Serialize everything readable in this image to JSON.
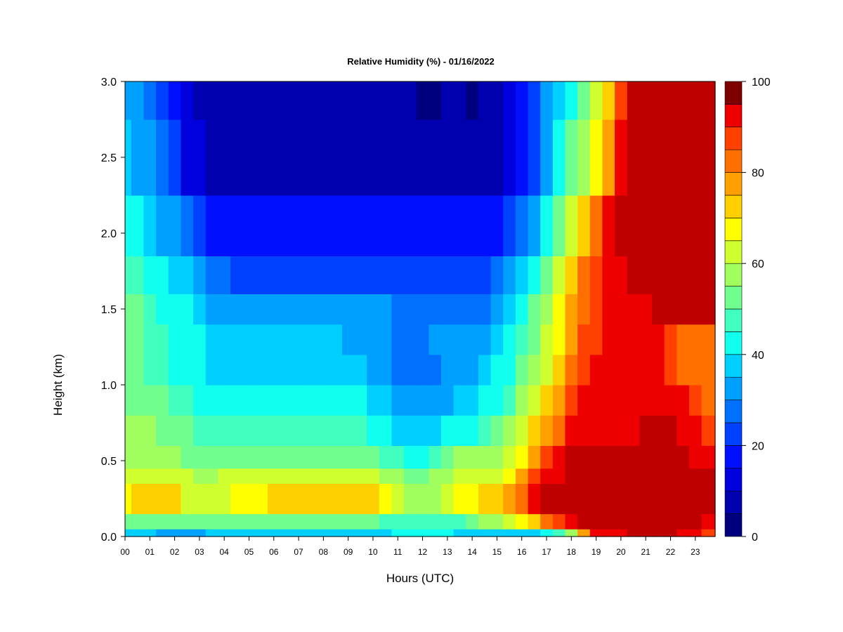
{
  "chart_data": {
    "type": "heatmap",
    "title": "Relative Humidity (%) - 01/16/2022",
    "xlabel": "Hours (UTC)",
    "ylabel": "Height (km)",
    "x_ticks": [
      "00",
      "01",
      "02",
      "03",
      "04",
      "05",
      "06",
      "07",
      "08",
      "09",
      "10",
      "11",
      "12",
      "13",
      "14",
      "15",
      "16",
      "17",
      "18",
      "19",
      "20",
      "21",
      "22",
      "23"
    ],
    "y_ticks": [
      "0.0",
      "0.5",
      "1.0",
      "1.5",
      "2.0",
      "2.5",
      "3.0"
    ],
    "xlim": [
      0,
      23.8
    ],
    "ylim": [
      0,
      3.0
    ],
    "colorbar": {
      "ticks": [
        "0",
        "20",
        "40",
        "60",
        "80",
        "100"
      ],
      "range": [
        0,
        100
      ],
      "levels": 20,
      "colors": [
        "#00007f",
        "#0000af",
        "#0000df",
        "#0010ff",
        "#0040ff",
        "#0070ff",
        "#00a0ff",
        "#00d0ff",
        "#10ffee",
        "#40ffbf",
        "#70ff8f",
        "#a0ff5f",
        "#d0ff2f",
        "#ffff00",
        "#ffd000",
        "#ffa000",
        "#ff7000",
        "#ff4000",
        "#ef0000",
        "#bf0000",
        "#7f0000"
      ]
    },
    "hours": [
      0,
      0.5,
      1,
      1.5,
      2,
      2.5,
      3,
      3.5,
      4,
      4.5,
      5,
      5.5,
      6,
      6.5,
      7,
      7.5,
      8,
      8.5,
      9,
      9.5,
      10,
      10.5,
      11,
      11.5,
      12,
      12.5,
      13,
      13.5,
      14,
      14.5,
      15,
      15.5,
      16,
      16.5,
      17,
      17.5,
      18,
      18.5,
      19,
      19.5,
      20,
      20.5,
      21,
      21.5,
      22,
      22.5,
      23,
      23.5
    ],
    "heights_km": [
      0.0,
      0.1,
      0.2,
      0.3,
      0.4,
      0.5,
      0.7,
      0.9,
      1.1,
      1.3,
      1.5,
      1.7,
      2.0,
      2.5,
      3.0
    ],
    "rh": [
      [
        38,
        38,
        36,
        34,
        34,
        34,
        34,
        35,
        35,
        36,
        36,
        36,
        37,
        37,
        37,
        37,
        37,
        37,
        37,
        37,
        36,
        38,
        40,
        40,
        40,
        40,
        40,
        38,
        38,
        38,
        38,
        38,
        38,
        38,
        40,
        45,
        55,
        78,
        90,
        92,
        94,
        95,
        95,
        96,
        96,
        94,
        90,
        85
      ],
      [
        50,
        52,
        52,
        52,
        50,
        50,
        50,
        50,
        52,
        52,
        52,
        52,
        52,
        52,
        52,
        52,
        52,
        52,
        52,
        52,
        50,
        48,
        46,
        45,
        45,
        45,
        45,
        48,
        50,
        55,
        58,
        60,
        65,
        70,
        80,
        88,
        92,
        96,
        97,
        97,
        97,
        97,
        97,
        97,
        97,
        97,
        95,
        90
      ],
      [
        68,
        70,
        72,
        72,
        70,
        64,
        62,
        62,
        64,
        66,
        68,
        68,
        70,
        70,
        70,
        70,
        70,
        72,
        72,
        72,
        70,
        68,
        60,
        58,
        58,
        58,
        60,
        66,
        68,
        70,
        72,
        75,
        80,
        90,
        95,
        96,
        98,
        99,
        99,
        99,
        99,
        99,
        99,
        99,
        99,
        99,
        99,
        98
      ],
      [
        68,
        70,
        72,
        72,
        70,
        62,
        60,
        60,
        62,
        66,
        68,
        68,
        70,
        70,
        70,
        70,
        70,
        72,
        72,
        72,
        70,
        68,
        60,
        58,
        58,
        58,
        60,
        66,
        68,
        70,
        72,
        75,
        82,
        92,
        96,
        97,
        98,
        99,
        99,
        99,
        99,
        99,
        99,
        99,
        99,
        99,
        99,
        99
      ],
      [
        62,
        64,
        64,
        64,
        62,
        60,
        58,
        58,
        60,
        60,
        62,
        62,
        62,
        62,
        62,
        62,
        62,
        62,
        62,
        62,
        60,
        58,
        55,
        54,
        54,
        55,
        58,
        60,
        60,
        62,
        64,
        66,
        75,
        88,
        92,
        94,
        96,
        99,
        99,
        99,
        99,
        99,
        99,
        99,
        99,
        99,
        99,
        98
      ],
      [
        58,
        58,
        58,
        58,
        56,
        54,
        52,
        52,
        52,
        52,
        52,
        52,
        52,
        52,
        52,
        52,
        52,
        52,
        52,
        52,
        50,
        48,
        45,
        44,
        44,
        46,
        50,
        55,
        55,
        56,
        58,
        60,
        66,
        78,
        86,
        90,
        95,
        97,
        97,
        97,
        97,
        97,
        98,
        98,
        98,
        96,
        94,
        90
      ],
      [
        55,
        55,
        55,
        54,
        52,
        50,
        48,
        46,
        46,
        46,
        46,
        46,
        46,
        46,
        46,
        46,
        46,
        46,
        46,
        45,
        44,
        42,
        38,
        36,
        36,
        38,
        40,
        42,
        44,
        46,
        50,
        56,
        60,
        70,
        78,
        84,
        90,
        94,
        94,
        94,
        94,
        94,
        95,
        95,
        95,
        93,
        90,
        86
      ],
      [
        52,
        52,
        52,
        50,
        48,
        46,
        44,
        42,
        42,
        42,
        42,
        42,
        42,
        42,
        42,
        42,
        42,
        42,
        42,
        40,
        38,
        36,
        32,
        30,
        30,
        32,
        34,
        36,
        38,
        40,
        44,
        48,
        55,
        62,
        70,
        78,
        86,
        90,
        90,
        90,
        90,
        92,
        93,
        93,
        93,
        90,
        88,
        84
      ],
      [
        50,
        50,
        48,
        46,
        44,
        42,
        40,
        38,
        38,
        38,
        38,
        38,
        38,
        38,
        38,
        38,
        38,
        38,
        36,
        35,
        33,
        30,
        28,
        26,
        26,
        28,
        30,
        32,
        34,
        36,
        40,
        44,
        50,
        56,
        64,
        72,
        82,
        88,
        90,
        90,
        92,
        92,
        92,
        90,
        86,
        84,
        82,
        82
      ],
      [
        50,
        50,
        48,
        46,
        44,
        42,
        40,
        38,
        38,
        36,
        36,
        36,
        36,
        36,
        36,
        36,
        36,
        35,
        34,
        33,
        32,
        30,
        28,
        28,
        28,
        30,
        30,
        32,
        34,
        34,
        38,
        42,
        48,
        54,
        60,
        68,
        78,
        86,
        88,
        90,
        90,
        92,
        92,
        90,
        86,
        84,
        82,
        82
      ],
      [
        50,
        50,
        46,
        44,
        42,
        40,
        38,
        34,
        32,
        30,
        30,
        30,
        30,
        30,
        30,
        30,
        30,
        30,
        30,
        30,
        30,
        30,
        28,
        28,
        28,
        28,
        28,
        28,
        28,
        28,
        32,
        36,
        42,
        50,
        58,
        66,
        76,
        84,
        88,
        90,
        92,
        93,
        94,
        96,
        96,
        96,
        96,
        96
      ],
      [
        48,
        48,
        44,
        40,
        38,
        36,
        32,
        28,
        26,
        24,
        24,
        24,
        24,
        24,
        24,
        24,
        24,
        24,
        24,
        24,
        24,
        24,
        24,
        24,
        24,
        24,
        24,
        24,
        24,
        24,
        26,
        30,
        36,
        44,
        52,
        62,
        74,
        82,
        86,
        90,
        94,
        96,
        98,
        99,
        99,
        99,
        99,
        99
      ],
      [
        42,
        42,
        38,
        34,
        30,
        26,
        22,
        18,
        16,
        15,
        15,
        15,
        15,
        15,
        15,
        15,
        15,
        15,
        15,
        15,
        15,
        15,
        15,
        15,
        15,
        15,
        15,
        15,
        15,
        15,
        18,
        22,
        28,
        34,
        40,
        50,
        62,
        72,
        82,
        90,
        96,
        99,
        99,
        99,
        99,
        99,
        99,
        99
      ],
      [
        36,
        34,
        30,
        26,
        20,
        14,
        10,
        8,
        6,
        6,
        6,
        6,
        6,
        6,
        6,
        6,
        6,
        6,
        6,
        6,
        6,
        6,
        6,
        6,
        6,
        6,
        6,
        6,
        6,
        6,
        8,
        12,
        18,
        24,
        32,
        40,
        50,
        58,
        66,
        78,
        90,
        99,
        99,
        99,
        99,
        99,
        99,
        99
      ],
      [
        32,
        30,
        28,
        24,
        18,
        12,
        8,
        6,
        5,
        5,
        5,
        5,
        5,
        5,
        5,
        5,
        5,
        5,
        5,
        5,
        5,
        5,
        5,
        5,
        4,
        4,
        5,
        5,
        4,
        5,
        6,
        10,
        16,
        22,
        30,
        38,
        44,
        52,
        60,
        72,
        86,
        99,
        99,
        99,
        99,
        99,
        99,
        99
      ]
    ]
  }
}
